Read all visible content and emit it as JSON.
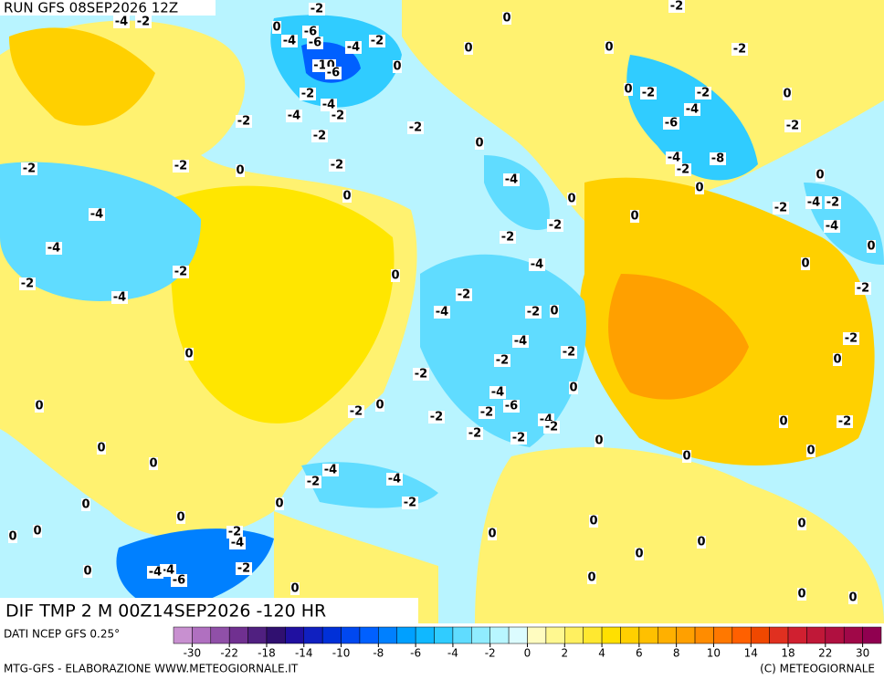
{
  "header": {
    "run": "RUN GFS 08SEP2026 12Z"
  },
  "map": {
    "field_label": "DIF TMP 2 M 00Z14SEP2026 -120 HR",
    "contour_labels": [
      -4,
      -2,
      -2,
      0,
      -4,
      -6,
      -6,
      -4,
      -2,
      -10,
      -6,
      0,
      0,
      0,
      0,
      -2,
      -2,
      0,
      -2,
      -2,
      0,
      -2,
      -4,
      -4,
      -2,
      -2,
      -2,
      -2,
      -4,
      -6,
      -2,
      0,
      -2,
      -2,
      0,
      -2,
      0,
      -4,
      -4,
      -8,
      -2,
      0,
      0,
      0,
      -4,
      0,
      -2,
      -2,
      -4,
      -2,
      -4,
      -2,
      0,
      -4,
      -2,
      -2,
      0,
      -4,
      0,
      -4,
      -2,
      -2,
      -4,
      -2,
      0,
      -4,
      0,
      -2,
      -2,
      0,
      -2,
      -2,
      0,
      0,
      -2,
      0,
      -4,
      -6,
      -2,
      -2,
      -4,
      -2,
      0,
      -2,
      0,
      -2,
      -2,
      0,
      0,
      0,
      0,
      -4,
      -4,
      -2,
      -2,
      0,
      0,
      0,
      0,
      0,
      0,
      0,
      0,
      -2,
      -4,
      0,
      -4,
      -4,
      -6,
      -2,
      0,
      0,
      0,
      0,
      0,
      0
    ]
  },
  "legend": {
    "source": "DATI NCEP GFS 0.25°",
    "colors": [
      "#c890d0",
      "#b070c0",
      "#9050a8",
      "#703090",
      "#502080",
      "#301070",
      "#2010a0",
      "#1020c0",
      "#0030d8",
      "#0048f0",
      "#0060ff",
      "#0080ff",
      "#00a0ff",
      "#10b8ff",
      "#30ccff",
      "#60dcff",
      "#90ecff",
      "#b8f6ff",
      "#dcfcff",
      "#fffcc0",
      "#fff890",
      "#fff060",
      "#ffe830",
      "#ffe000",
      "#ffd000",
      "#ffc000",
      "#ffb000",
      "#ffa000",
      "#ff8c00",
      "#ff7800",
      "#ff6000",
      "#f04800",
      "#e03020",
      "#d02030",
      "#c01838",
      "#b01040",
      "#a00848",
      "#900050"
    ],
    "ticks": [
      -30,
      -22,
      -18,
      -14,
      -10,
      -8,
      -6,
      -4,
      -2,
      0,
      2,
      4,
      6,
      8,
      10,
      14,
      18,
      22,
      30
    ]
  },
  "footer": {
    "left": "MTG-GFS - ELABORAZIONE WWW.METEOGIORNALE.IT",
    "right": "(C) METEOGIORNALE"
  }
}
